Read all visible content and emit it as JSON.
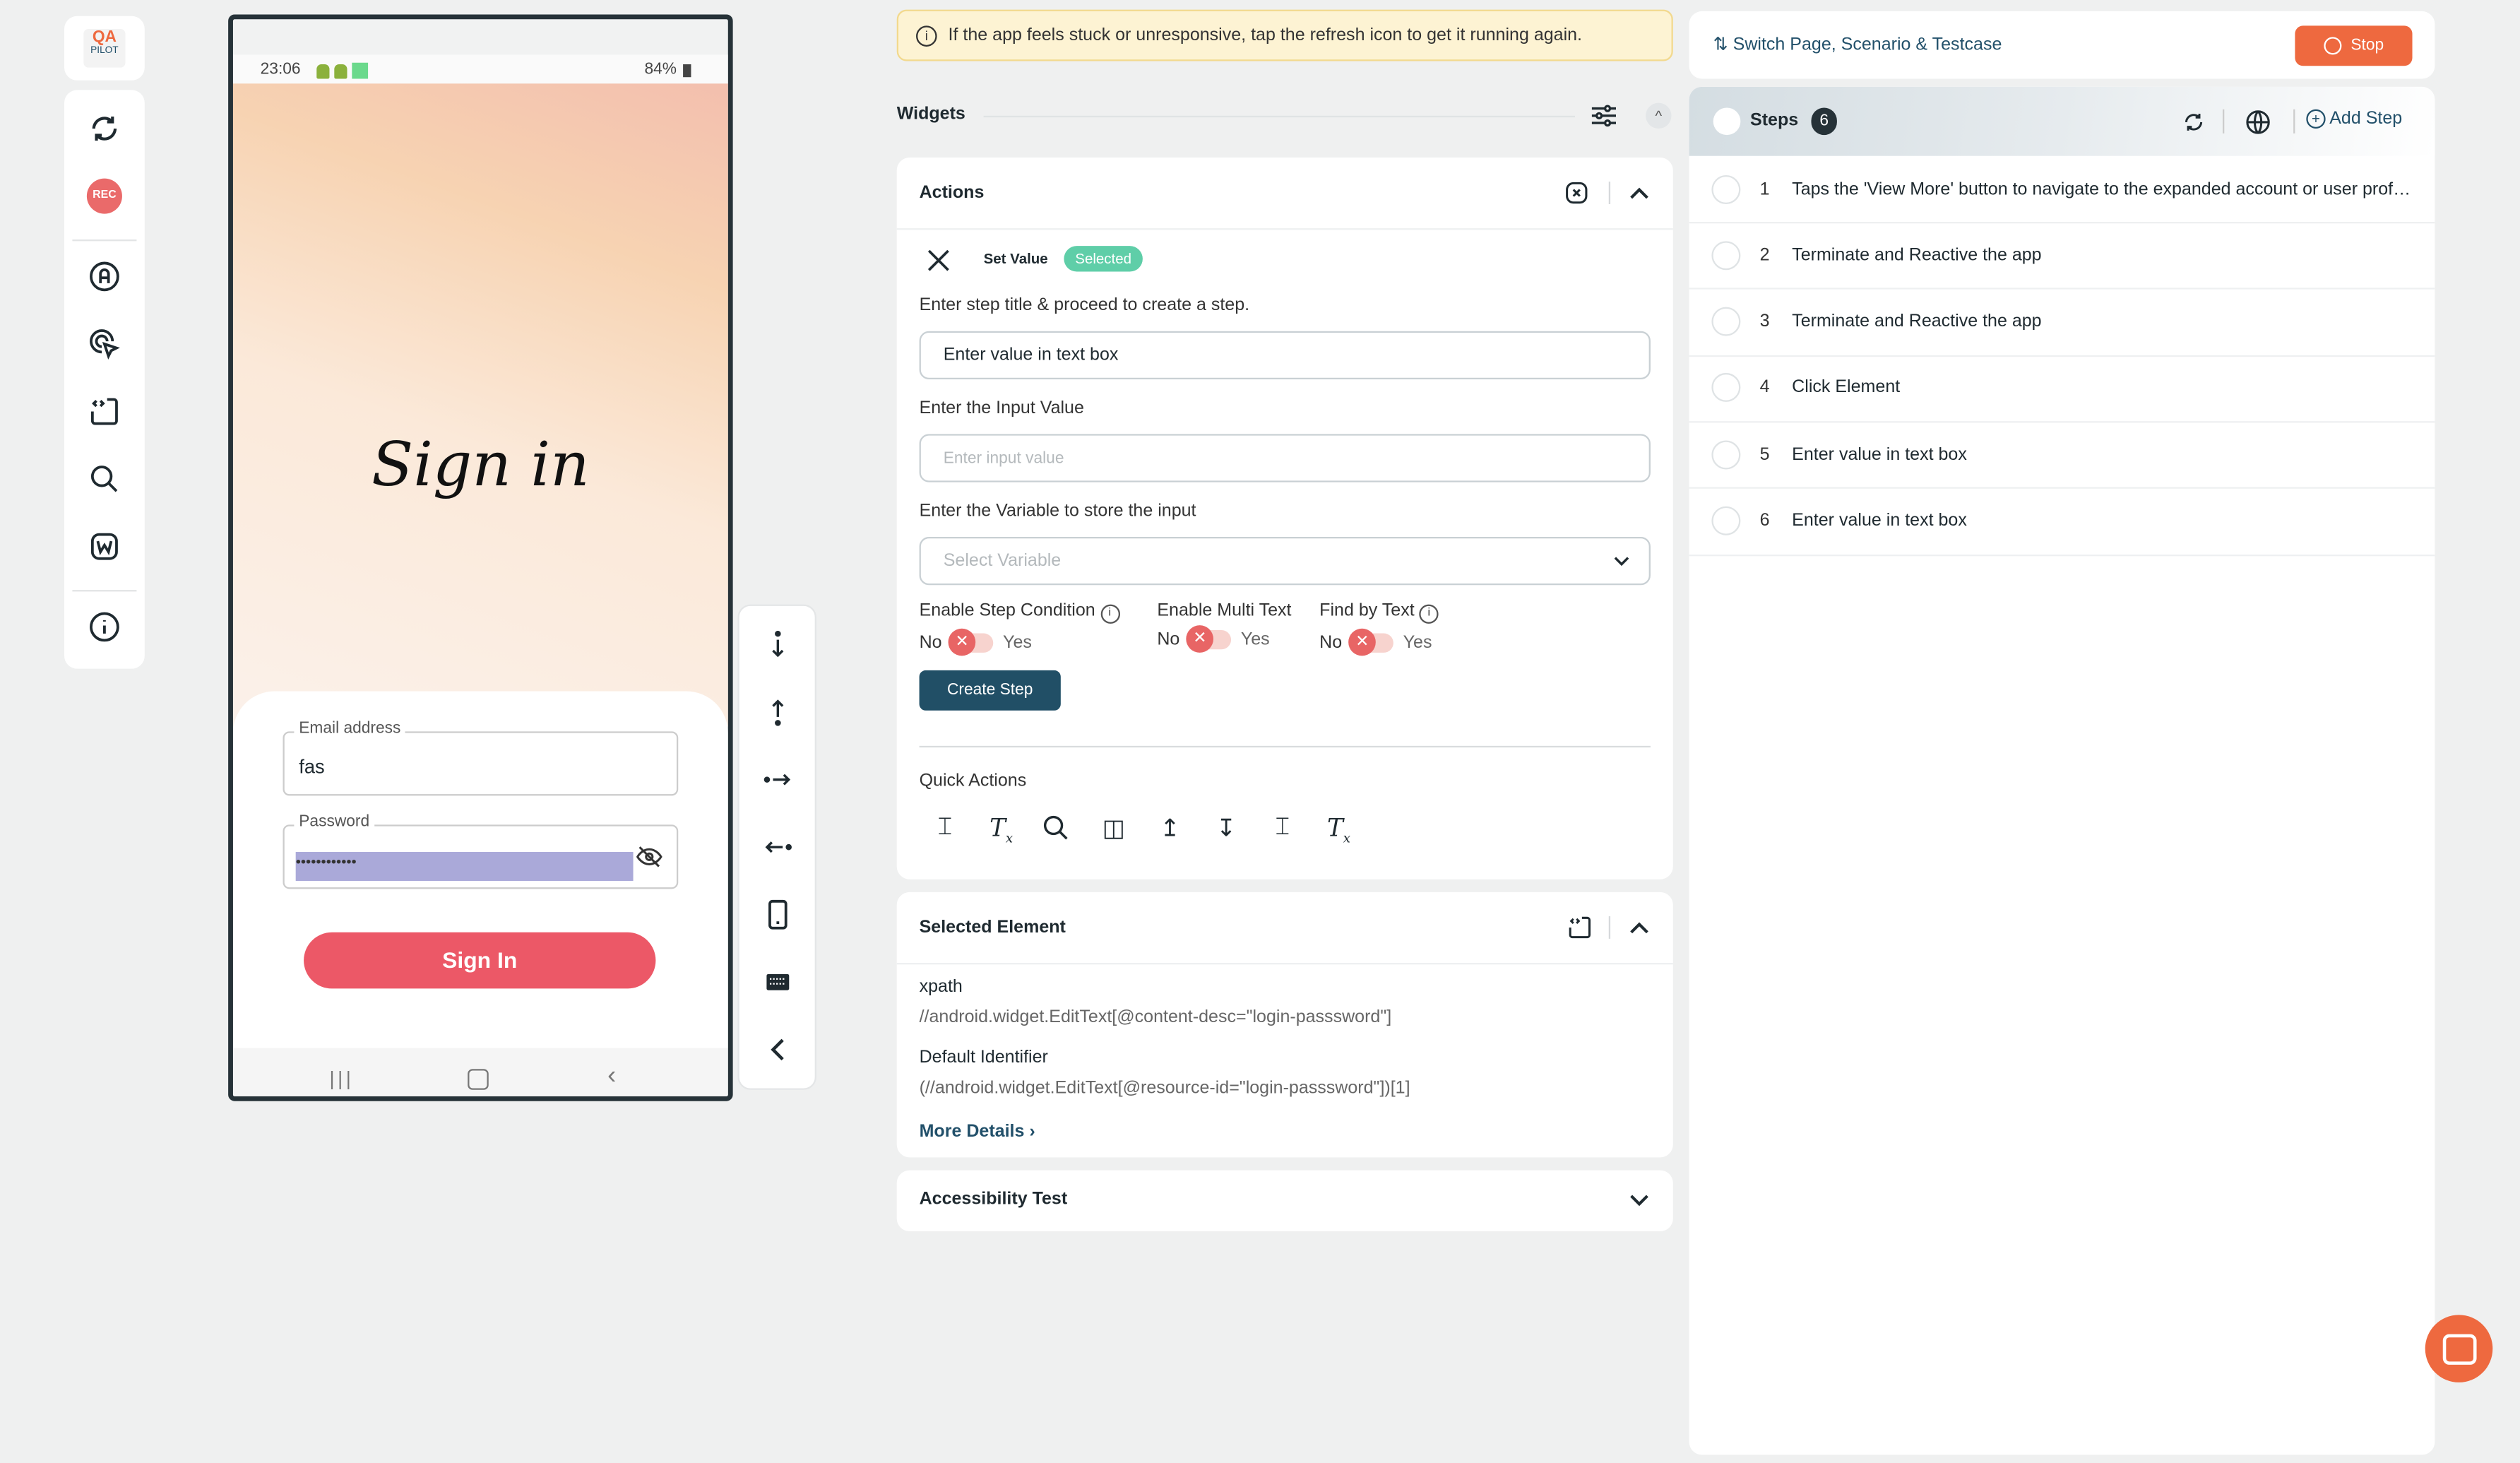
{
  "logo": {
    "line1": "QA",
    "line2": "PILOT"
  },
  "sidebar": {
    "items": [
      {
        "icon": "refresh-icon"
      },
      {
        "icon": "record-icon",
        "label": "REC"
      },
      {
        "icon": "auto-icon"
      },
      {
        "icon": "tap-cursor-icon"
      },
      {
        "icon": "code-frame-icon"
      },
      {
        "icon": "search-icon"
      },
      {
        "icon": "web-icon"
      },
      {
        "icon": "info-icon"
      }
    ]
  },
  "phone": {
    "time": "23:06",
    "battery": "84%",
    "title": "Sign in",
    "email_label": "Email address",
    "email_value": "fas",
    "password_label": "Password",
    "password_value": "••••••••••••",
    "signin_label": "Sign In"
  },
  "device_toolbar": [
    "swipe-down-icon",
    "swipe-up-icon",
    "swipe-right-icon",
    "swipe-left-icon",
    "device-icon",
    "keyboard-icon",
    "back-icon"
  ],
  "banner": {
    "text": "If the app feels stuck or unresponsive, tap the refresh icon to get it running again.",
    "color": "#fdf3d3"
  },
  "widgets": {
    "title": "Widgets"
  },
  "actions": {
    "title": "Actions",
    "action_name": "Set Value",
    "badge": "Selected",
    "step_title_label": "Enter step title & proceed to create a step.",
    "step_title_value": "Enter value in text box",
    "input_label": "Enter the Input Value",
    "input_placeholder": "Enter input value",
    "variable_label": "Enter the Variable to store the input",
    "variable_placeholder": "Select Variable",
    "toggles": [
      {
        "label": "Enable Step Condition",
        "no": "No",
        "yes": "Yes",
        "value": false
      },
      {
        "label": "Enable Multi Text",
        "no": "No",
        "yes": "Yes",
        "value": false
      },
      {
        "label": "Find by Text",
        "no": "No",
        "yes": "Yes",
        "value": false
      }
    ],
    "create_label": "Create Step",
    "quick_actions_label": "Quick Actions",
    "quick_actions": [
      "text-select-icon",
      "clear-format-icon",
      "search-icon",
      "split-icon",
      "scroll-up-icon",
      "scroll-down-icon",
      "text-select-icon",
      "clear-format-icon"
    ]
  },
  "selected_element": {
    "title": "Selected Element",
    "xpath_label": "xpath",
    "xpath_value": "//android.widget.EditText[@content-desc=\"login-passsword\"]",
    "default_label": "Default Identifier",
    "default_value": "(//android.widget.EditText[@resource-id=\"login-passsword\"])[1]",
    "more_label": "More Details"
  },
  "accessibility": {
    "title": "Accessibility Test"
  },
  "top_right": {
    "switch_label": "Switch Page, Scenario & Testcase",
    "stop_label": "Stop",
    "stop_color": "#ee693f"
  },
  "steps": {
    "title": "Steps",
    "count": "6",
    "add_label": "Add Step",
    "items": [
      {
        "n": "1",
        "text": "Taps the 'View More' button to navigate to the expanded account or user profile section"
      },
      {
        "n": "2",
        "text": "Terminate and Reactive the app"
      },
      {
        "n": "3",
        "text": "Terminate and Reactive the app"
      },
      {
        "n": "4",
        "text": "Click Element"
      },
      {
        "n": "5",
        "text": "Enter value in text box"
      },
      {
        "n": "6",
        "text": "Enter value in text box"
      }
    ]
  }
}
